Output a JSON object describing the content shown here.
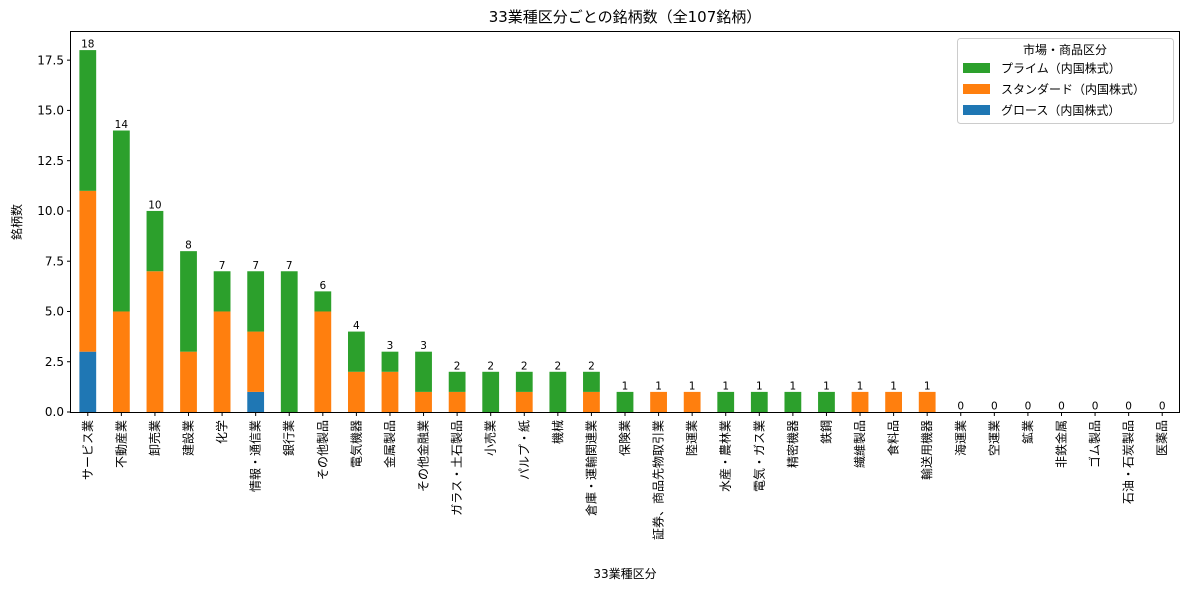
{
  "chart_data": {
    "type": "bar",
    "stacked": true,
    "title": "33業種区分ごとの銘柄数（全107銘柄）",
    "xlabel": "33業種区分",
    "ylabel": "銘柄数",
    "ylim": [
      0,
      18.9
    ],
    "yticks": [
      0.0,
      2.5,
      5.0,
      7.5,
      10.0,
      12.5,
      15.0,
      17.5
    ],
    "ytick_labels": [
      "0.0",
      "2.5",
      "5.0",
      "7.5",
      "10.0",
      "12.5",
      "15.0",
      "17.5"
    ],
    "grid": false,
    "legend": {
      "title": "市場・商品区分",
      "position": "top-right",
      "entries": [
        "プライム（内国株式）",
        "スタンダード（内国株式）",
        "グロース（内国株式）"
      ]
    },
    "categories": [
      "サービス業",
      "不動産業",
      "卸売業",
      "建設業",
      "化学",
      "情報・通信業",
      "銀行業",
      "その他製品",
      "電気機器",
      "金属製品",
      "その他金融業",
      "ガラス・土石製品",
      "小売業",
      "パルプ・紙",
      "機械",
      "倉庫・運輸関連業",
      "保険業",
      "証券、商品先物取引業",
      "陸運業",
      "水産・農林業",
      "電気・ガス業",
      "精密機器",
      "鉄鋼",
      "繊維製品",
      "食料品",
      "輸送用機器",
      "海運業",
      "空運業",
      "鉱業",
      "非鉄金属",
      "ゴム製品",
      "石油・石炭製品",
      "医薬品"
    ],
    "series": [
      {
        "name": "グロース（内国株式）",
        "color": "#1f77b4",
        "values": [
          3,
          0,
          0,
          0,
          0,
          1,
          0,
          0,
          0,
          0,
          0,
          0,
          0,
          0,
          0,
          0,
          0,
          0,
          0,
          0,
          0,
          0,
          0,
          0,
          0,
          0,
          0,
          0,
          0,
          0,
          0,
          0,
          0
        ]
      },
      {
        "name": "スタンダード（内国株式）",
        "color": "#ff7f0e",
        "values": [
          8,
          5,
          7,
          3,
          5,
          3,
          0,
          5,
          2,
          2,
          1,
          1,
          0,
          1,
          0,
          1,
          0,
          1,
          1,
          0,
          0,
          0,
          0,
          1,
          1,
          1,
          0,
          0,
          0,
          0,
          0,
          0,
          0
        ]
      },
      {
        "name": "プライム（内国株式）",
        "color": "#2ca02c",
        "values": [
          7,
          9,
          3,
          5,
          2,
          3,
          7,
          1,
          2,
          1,
          2,
          1,
          2,
          1,
          2,
          1,
          1,
          0,
          0,
          1,
          1,
          1,
          1,
          0,
          0,
          0,
          0,
          0,
          0,
          0,
          0,
          0,
          0
        ]
      }
    ],
    "totals": [
      "18",
      "14",
      "10",
      "8",
      "7",
      "7",
      "7",
      "6",
      "4",
      "3",
      "3",
      "2",
      "2",
      "2",
      "2",
      "2",
      "1",
      "1",
      "1",
      "1",
      "1",
      "1",
      "1",
      "1",
      "1",
      "1",
      "0",
      "0",
      "0",
      "0",
      "0",
      "0",
      "0"
    ]
  }
}
